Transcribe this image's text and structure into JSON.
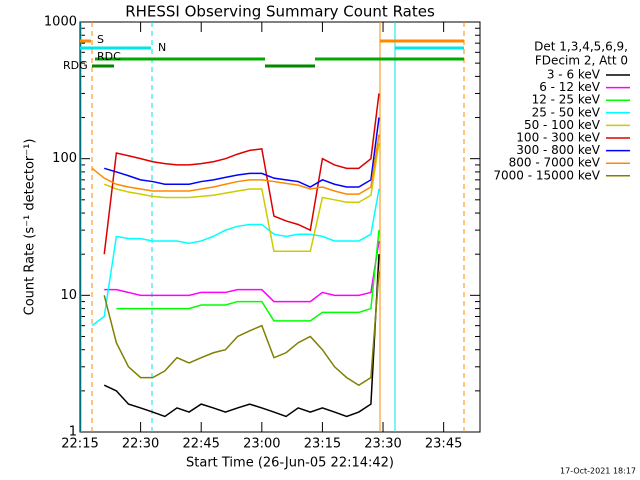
{
  "chart_data": {
    "type": "line",
    "title": "RHESSI Observing Summary Count Rates",
    "x_label": "Start Time (26-Jun-05 22:14:42)",
    "y_label": "Count Rate (s⁻¹ detector⁻¹)",
    "legend_title": [
      "Det 1,3,4,5,6,9,",
      "FDecim 2, Att 0"
    ],
    "footer": "17-Oct-2021 18:17",
    "flags": [
      {
        "label": "S",
        "color": "#ff8800"
      },
      {
        "label": "N",
        "color": "#00e5ee"
      },
      {
        "label": "RDC",
        "color": "#00aa00"
      },
      {
        "label": "RDG",
        "color": "#008800"
      }
    ],
    "log_y": true,
    "ylim": [
      1,
      1000
    ],
    "yticks": [
      1,
      10,
      100,
      1000
    ],
    "xlim": [
      1335,
      1434
    ],
    "xticks": [
      {
        "value": 1335,
        "label": "22:15"
      },
      {
        "value": 1350,
        "label": "22:30"
      },
      {
        "value": 1365,
        "label": "22:45"
      },
      {
        "value": 1380,
        "label": "23:00"
      },
      {
        "value": 1395,
        "label": "23:15"
      },
      {
        "value": 1410,
        "label": "23:30"
      },
      {
        "value": 1425,
        "label": "23:45"
      }
    ],
    "x": [
      1338,
      1341,
      1344,
      1347,
      1350,
      1353,
      1356,
      1359,
      1362,
      1365,
      1368,
      1371,
      1374,
      1377,
      1380,
      1383,
      1386,
      1389,
      1392,
      1395,
      1398,
      1401,
      1404,
      1407,
      1409
    ],
    "series": [
      {
        "name": "3 - 6 keV",
        "color": "#000000",
        "values": [
          null,
          2.2,
          2,
          1.6,
          1.5,
          1.4,
          1.3,
          1.5,
          1.4,
          1.6,
          1.5,
          1.4,
          1.5,
          1.6,
          1.5,
          1.4,
          1.3,
          1.5,
          1.4,
          1.5,
          1.4,
          1.3,
          1.4,
          1.6,
          20
        ]
      },
      {
        "name": "6 - 12 keV",
        "color": "#ff00ff",
        "values": [
          null,
          11,
          11,
          10.5,
          10,
          10,
          10,
          10,
          10,
          10.5,
          10.5,
          10.5,
          11,
          11,
          11,
          9,
          9,
          9,
          9,
          10.5,
          10,
          10,
          10,
          10.5,
          25
        ]
      },
      {
        "name": "12 - 25 keV",
        "color": "#00ff00",
        "values": [
          null,
          null,
          8,
          8,
          8,
          8,
          8,
          8,
          8,
          8.5,
          8.5,
          8.5,
          9,
          9,
          9,
          6.5,
          6.5,
          6.5,
          6.5,
          7.5,
          7.5,
          7.5,
          7.5,
          8,
          30
        ]
      },
      {
        "name": "25 - 50 keV",
        "color": "#00ffff",
        "values": [
          6,
          7,
          27,
          26,
          26,
          25,
          25,
          25,
          24,
          25,
          27,
          30,
          32,
          33,
          33,
          28,
          27,
          28,
          28,
          27,
          25,
          25,
          25,
          28,
          60
        ]
      },
      {
        "name": "50 - 100 keV",
        "color": "#cccc00",
        "values": [
          null,
          65,
          60,
          57,
          55,
          53,
          52,
          52,
          52,
          53,
          54,
          56,
          58,
          60,
          60,
          21,
          21,
          21,
          21,
          52,
          50,
          48,
          48,
          54,
          130
        ]
      },
      {
        "name": "100 - 300 keV",
        "color": "#dd0000",
        "values": [
          null,
          20,
          110,
          105,
          100,
          95,
          92,
          90,
          90,
          92,
          95,
          100,
          108,
          115,
          118,
          38,
          35,
          33,
          30,
          100,
          90,
          85,
          85,
          100,
          300
        ]
      },
      {
        "name": "300 - 800 keV",
        "color": "#0000ff",
        "values": [
          null,
          85,
          80,
          75,
          70,
          68,
          65,
          65,
          65,
          68,
          70,
          73,
          76,
          78,
          78,
          72,
          70,
          68,
          62,
          70,
          65,
          62,
          62,
          70,
          200
        ]
      },
      {
        "name": "800 - 7000 keV",
        "color": "#ff8800",
        "values": [
          85,
          72,
          65,
          62,
          60,
          58,
          58,
          58,
          58,
          60,
          62,
          65,
          68,
          70,
          70,
          68,
          66,
          64,
          60,
          62,
          58,
          55,
          55,
          62,
          150
        ]
      },
      {
        "name": "7000 - 15000 keV",
        "color": "#808000",
        "values": [
          null,
          10,
          4.5,
          3,
          2.5,
          2.5,
          2.8,
          3.5,
          3.2,
          3.5,
          3.8,
          4,
          5,
          5.5,
          6,
          3.5,
          3.8,
          4.5,
          5,
          4,
          3,
          2.5,
          2.2,
          2.5,
          15
        ]
      }
    ]
  }
}
